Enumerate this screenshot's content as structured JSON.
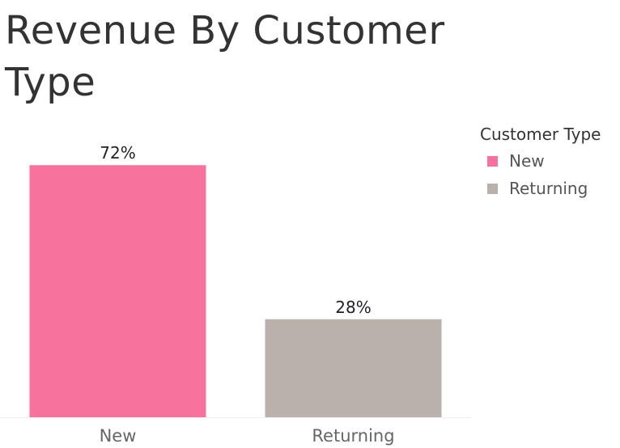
{
  "chart_data": {
    "type": "bar",
    "title": "Revenue By Customer Type",
    "categories": [
      "New",
      "Returning"
    ],
    "values": [
      72,
      28
    ],
    "value_labels": [
      "72%",
      "28%"
    ],
    "colors": [
      "#F8729E",
      "#BAB0AC"
    ],
    "ylim": [
      0,
      100
    ],
    "grid": false,
    "legend": {
      "title": "Customer Type",
      "placement": "right",
      "entries": [
        "New",
        "Returning"
      ]
    }
  }
}
